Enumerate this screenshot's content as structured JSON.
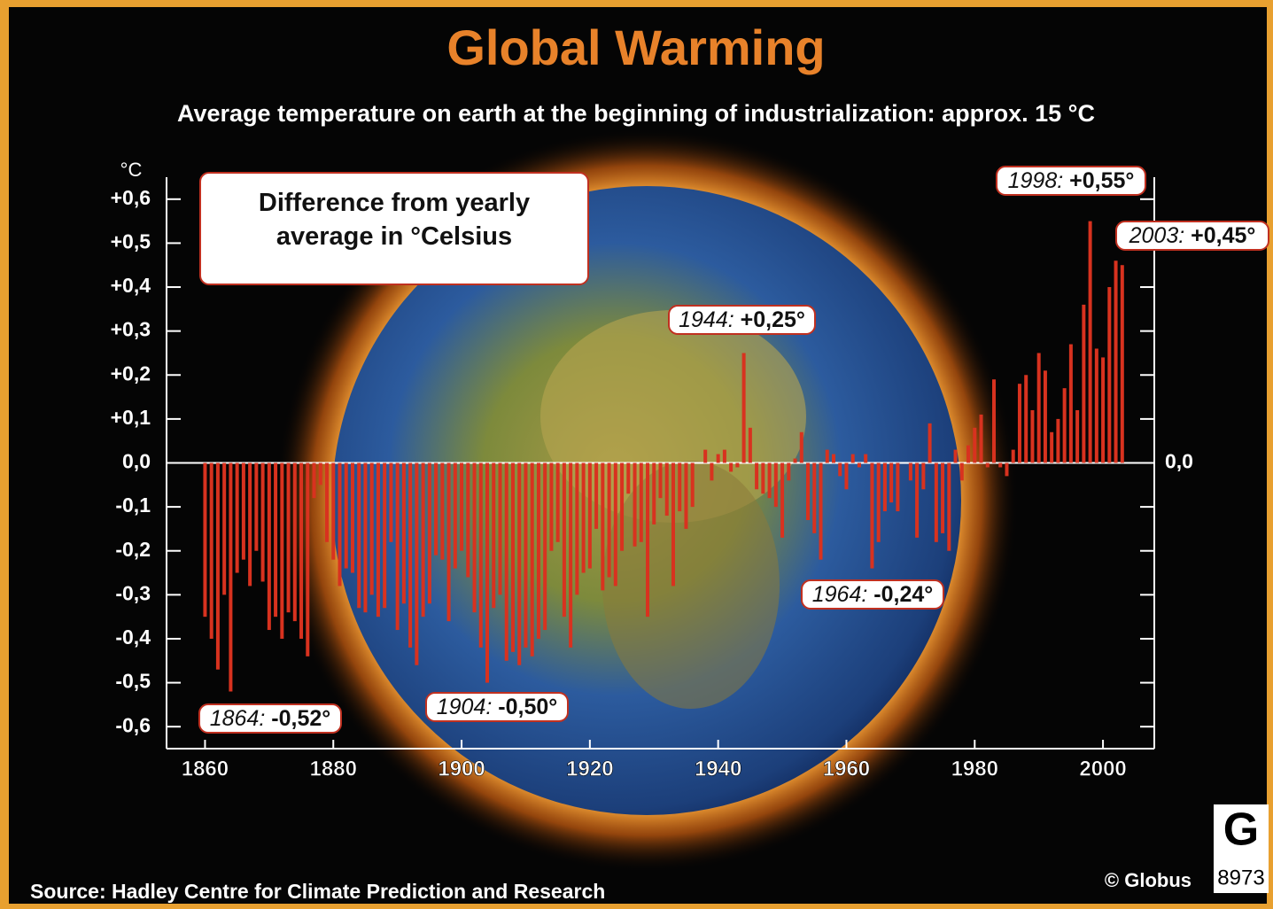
{
  "chart_data": {
    "type": "bar",
    "title": "Global Warming",
    "subtitle": "Average temperature on earth at the beginning of industrialization: approx. 15 °C",
    "y_unit": "°C",
    "legend_box": "Difference from yearly average in °Celsius",
    "color": "#d8321f",
    "x": [
      1860,
      1861,
      1862,
      1863,
      1864,
      1865,
      1866,
      1867,
      1868,
      1869,
      1870,
      1871,
      1872,
      1873,
      1874,
      1875,
      1876,
      1877,
      1878,
      1879,
      1880,
      1881,
      1882,
      1883,
      1884,
      1885,
      1886,
      1887,
      1888,
      1889,
      1890,
      1891,
      1892,
      1893,
      1894,
      1895,
      1896,
      1897,
      1898,
      1899,
      1900,
      1901,
      1902,
      1903,
      1904,
      1905,
      1906,
      1907,
      1908,
      1909,
      1910,
      1911,
      1912,
      1913,
      1914,
      1915,
      1916,
      1917,
      1918,
      1919,
      1920,
      1921,
      1922,
      1923,
      1924,
      1925,
      1926,
      1927,
      1928,
      1929,
      1930,
      1931,
      1932,
      1933,
      1934,
      1935,
      1936,
      1937,
      1938,
      1939,
      1940,
      1941,
      1942,
      1943,
      1944,
      1945,
      1946,
      1947,
      1948,
      1949,
      1950,
      1951,
      1952,
      1953,
      1954,
      1955,
      1956,
      1957,
      1958,
      1959,
      1960,
      1961,
      1962,
      1963,
      1964,
      1965,
      1966,
      1967,
      1968,
      1969,
      1970,
      1971,
      1972,
      1973,
      1974,
      1975,
      1976,
      1977,
      1978,
      1979,
      1980,
      1981,
      1982,
      1983,
      1984,
      1985,
      1986,
      1987,
      1988,
      1989,
      1990,
      1991,
      1992,
      1993,
      1994,
      1995,
      1996,
      1997,
      1998,
      1999,
      2000,
      2001,
      2002,
      2003
    ],
    "values": [
      -0.35,
      -0.4,
      -0.47,
      -0.3,
      -0.52,
      -0.25,
      -0.22,
      -0.28,
      -0.2,
      -0.27,
      -0.38,
      -0.35,
      -0.4,
      -0.34,
      -0.36,
      -0.4,
      -0.44,
      -0.08,
      -0.05,
      -0.18,
      -0.22,
      -0.28,
      -0.24,
      -0.25,
      -0.33,
      -0.34,
      -0.3,
      -0.35,
      -0.33,
      -0.18,
      -0.38,
      -0.32,
      -0.42,
      -0.46,
      -0.35,
      -0.32,
      -0.21,
      -0.22,
      -0.36,
      -0.24,
      -0.2,
      -0.26,
      -0.34,
      -0.42,
      -0.5,
      -0.33,
      -0.3,
      -0.45,
      -0.43,
      -0.46,
      -0.42,
      -0.44,
      -0.4,
      -0.38,
      -0.2,
      -0.18,
      -0.35,
      -0.42,
      -0.3,
      -0.25,
      -0.24,
      -0.15,
      -0.29,
      -0.26,
      -0.28,
      -0.2,
      -0.07,
      -0.19,
      -0.18,
      -0.35,
      -0.14,
      -0.08,
      -0.12,
      -0.28,
      -0.11,
      -0.15,
      -0.1,
      0.0,
      0.03,
      -0.04,
      0.02,
      0.03,
      -0.02,
      -0.01,
      0.25,
      0.08,
      -0.06,
      -0.07,
      -0.08,
      -0.1,
      -0.17,
      -0.04,
      0.01,
      0.07,
      -0.13,
      -0.16,
      -0.22,
      0.03,
      0.02,
      -0.03,
      -0.06,
      0.02,
      -0.01,
      0.02,
      -0.24,
      -0.18,
      -0.11,
      -0.09,
      -0.11,
      0.0,
      -0.04,
      -0.17,
      -0.06,
      0.09,
      -0.18,
      -0.16,
      -0.2,
      0.03,
      -0.04,
      0.04,
      0.08,
      0.11,
      -0.01,
      0.19,
      -0.01,
      -0.03,
      0.03,
      0.18,
      0.2,
      0.12,
      0.25,
      0.21,
      0.07,
      0.1,
      0.17,
      0.27,
      0.12,
      0.36,
      0.55,
      0.26,
      0.24,
      0.4,
      0.46,
      0.45
    ],
    "xlim": [
      1854,
      2008
    ],
    "xticks": [
      1860,
      1880,
      1900,
      1920,
      1940,
      1960,
      1980,
      2000
    ],
    "ylim": [
      -0.65,
      0.65
    ],
    "yticks": [
      {
        "value": 0.6,
        "label": "+0,6"
      },
      {
        "value": 0.5,
        "label": "+0,5"
      },
      {
        "value": 0.4,
        "label": "+0,4"
      },
      {
        "value": 0.3,
        "label": "+0,3"
      },
      {
        "value": 0.2,
        "label": "+0,2"
      },
      {
        "value": 0.1,
        "label": "+0,1"
      },
      {
        "value": 0,
        "label": "0,0"
      },
      {
        "value": -0.1,
        "label": "-0,1"
      },
      {
        "value": -0.2,
        "label": "-0,2"
      },
      {
        "value": -0.3,
        "label": "-0,3"
      },
      {
        "value": -0.4,
        "label": "-0,4"
      },
      {
        "value": -0.5,
        "label": "-0,5"
      },
      {
        "value": -0.6,
        "label": "-0,6"
      }
    ],
    "y2lim": [
      -0.65,
      0.65
    ],
    "y2ticks": [
      {
        "value": 0,
        "label": "0,0"
      }
    ],
    "annotations": [
      {
        "year": "1864:",
        "label": "-0,52°"
      },
      {
        "year": "1904:",
        "label": "-0,50°"
      },
      {
        "year": "1944:",
        "label": "+0,25°"
      },
      {
        "year": "1964:",
        "label": "-0,24°"
      },
      {
        "year": "1998:",
        "label": "+0,55°"
      },
      {
        "year": "2003:",
        "label": "+0,45°"
      }
    ],
    "source": "Source: Hadley Centre for Climate Prediction and Research",
    "copyright": "© Globus",
    "logo": "G",
    "code": "8973"
  }
}
